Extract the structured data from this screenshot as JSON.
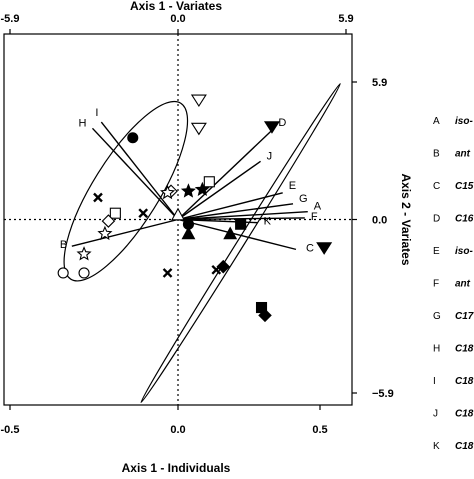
{
  "chart_data": {
    "type": "scatter",
    "title": "",
    "axis_top": {
      "label": "Axis 1 - Variates",
      "range": [
        -5.9,
        5.9
      ],
      "ticks": [
        "-5.9",
        "0.0",
        "5.9"
      ]
    },
    "axis_bottom": {
      "label": "Axis 1 - Individuals",
      "range": [
        -0.5,
        0.5
      ],
      "ticks": [
        "-0.5",
        "0.0",
        "0.5"
      ]
    },
    "axis_right": {
      "label": "Axis 2 - Variates",
      "range": [
        -5.9,
        5.9
      ],
      "ticks": [
        "5.9",
        "0.0",
        "−5.9"
      ]
    },
    "grid": false,
    "zero_lines": "dotted",
    "legend_position": "right",
    "legend": [
      {
        "key": "A",
        "text": "iso-"
      },
      {
        "key": "B",
        "text": "ant"
      },
      {
        "key": "C",
        "text": "C15"
      },
      {
        "key": "D",
        "text": "C16"
      },
      {
        "key": "E",
        "text": "iso-"
      },
      {
        "key": "F",
        "text": "ant"
      },
      {
        "key": "G",
        "text": "C17"
      },
      {
        "key": "H",
        "text": "C18"
      },
      {
        "key": "I",
        "text": "C18"
      },
      {
        "key": "J",
        "text": "C18"
      },
      {
        "key": "K",
        "text": "C18"
      }
    ],
    "vectors": [
      {
        "label": "A",
        "x": 4.4,
        "y": 0.25
      },
      {
        "label": "B",
        "x": -3.6,
        "y": -0.85
      },
      {
        "label": "C",
        "x": 4.0,
        "y": -0.95
      },
      {
        "label": "D",
        "x": 3.2,
        "y": 2.85
      },
      {
        "label": "E",
        "x": 3.55,
        "y": 0.85
      },
      {
        "label": "F",
        "x": 4.3,
        "y": 0.05
      },
      {
        "label": "G",
        "x": 3.9,
        "y": 0.5
      },
      {
        "label": "H",
        "x": -2.9,
        "y": 2.9
      },
      {
        "label": "I",
        "x": -2.6,
        "y": 3.1
      },
      {
        "label": "J",
        "x": 2.8,
        "y": 1.85
      },
      {
        "label": "K",
        "x": 2.7,
        "y": -0.1
      }
    ],
    "individuals": [
      {
        "symbol": "triangle-down-open",
        "x": 0.06,
        "y": 3.8
      },
      {
        "symbol": "triangle-down-open",
        "x": 0.06,
        "y": 2.9
      },
      {
        "symbol": "circle-filled",
        "x": -0.13,
        "y": 2.6
      },
      {
        "symbol": "triangle-down-filled",
        "x": 0.27,
        "y": 2.95
      },
      {
        "symbol": "square-open",
        "x": 0.09,
        "y": 1.2
      },
      {
        "symbol": "star-filled",
        "x": 0.07,
        "y": 0.95
      },
      {
        "symbol": "star-filled",
        "x": 0.03,
        "y": 0.9
      },
      {
        "symbol": "diamond-open",
        "x": -0.02,
        "y": 0.9
      },
      {
        "symbol": "star-open",
        "x": -0.03,
        "y": 0.85
      },
      {
        "symbol": "x-filled",
        "x": -0.23,
        "y": 0.7
      },
      {
        "symbol": "square-open",
        "x": -0.18,
        "y": 0.2
      },
      {
        "symbol": "diamond-open",
        "x": -0.2,
        "y": -0.05
      },
      {
        "symbol": "x-filled",
        "x": -0.1,
        "y": 0.2
      },
      {
        "symbol": "triangle-up-open",
        "x": 0.0,
        "y": 0.15
      },
      {
        "symbol": "circle-filled",
        "x": 0.03,
        "y": -0.15
      },
      {
        "symbol": "triangle-up-filled",
        "x": 0.03,
        "y": -0.45
      },
      {
        "symbol": "triangle-up-filled",
        "x": 0.15,
        "y": -0.45
      },
      {
        "symbol": "square-filled",
        "x": 0.18,
        "y": -0.15
      },
      {
        "symbol": "triangle-down-filled",
        "x": 0.42,
        "y": -0.9
      },
      {
        "symbol": "star-open",
        "x": -0.21,
        "y": -0.45
      },
      {
        "symbol": "star-open",
        "x": -0.27,
        "y": -1.1
      },
      {
        "symbol": "circle-open",
        "x": -0.33,
        "y": -1.7
      },
      {
        "symbol": "circle-open",
        "x": -0.27,
        "y": -1.7
      },
      {
        "symbol": "x-filled",
        "x": -0.03,
        "y": -1.7
      },
      {
        "symbol": "diamond-filled",
        "x": 0.13,
        "y": -1.5
      },
      {
        "symbol": "x-filled",
        "x": 0.11,
        "y": -1.6
      },
      {
        "symbol": "square-filled",
        "x": 0.24,
        "y": -2.8
      },
      {
        "symbol": "diamond-filled",
        "x": 0.25,
        "y": -3.05
      }
    ],
    "ellipses": [
      {
        "cx": -0.15,
        "cy": 0.9,
        "rx": 0.095,
        "ry": 3.3,
        "angle_deg": 32
      },
      {
        "cx": 0.18,
        "cy": -0.75,
        "rx": 0.54,
        "ry": 0.115,
        "angle_deg": -58
      }
    ]
  }
}
